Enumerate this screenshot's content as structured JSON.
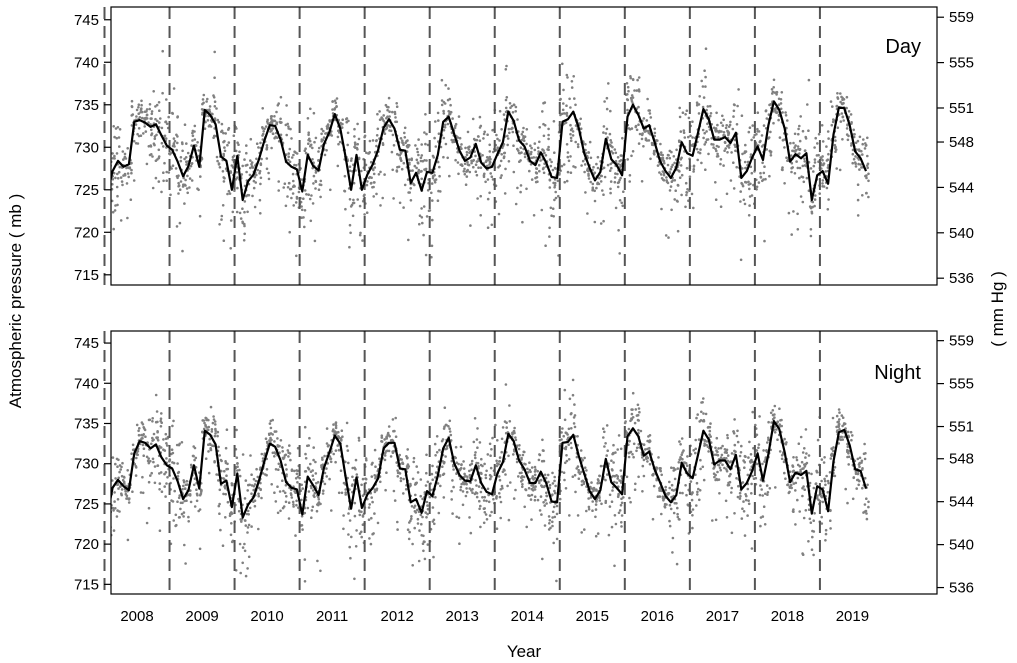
{
  "chart_data": {
    "type": "scatter",
    "xlabel": "Year",
    "ylabel_left": "Atmospheric pressure ( mb )",
    "ylabel_right": "( mm Hg )",
    "year_labels": [
      "2008",
      "2009",
      "2010",
      "2011",
      "2012",
      "2013",
      "2014",
      "2015",
      "2016",
      "2017",
      "2018",
      "2019"
    ],
    "year_boundaries": [
      2008,
      2009,
      2010,
      2011,
      2012,
      2013,
      2014,
      2015,
      2016,
      2017,
      2018,
      2019
    ],
    "xlim": [
      2007.6,
      2020.3
    ],
    "ylim_mb": [
      713.8,
      746.5
    ],
    "ylim_mmhg": [
      535.4,
      559.9
    ],
    "yticks_mb": [
      715,
      720,
      725,
      730,
      735,
      740,
      745
    ],
    "yticks_mmhg": [
      536,
      540,
      544,
      548,
      551,
      555,
      559
    ],
    "colors": {
      "points": "#808080",
      "monthly_mean": "#000000",
      "year_divider": "#555555"
    },
    "panels": [
      {
        "name": "Day",
        "monthly_mean": [
          724.6,
          727.2,
          728.4,
          727.7,
          728.0,
          733.0,
          733.2,
          732.9,
          732.4,
          732.7,
          731.4,
          730.2,
          729.7,
          728.3,
          726.6,
          727.8,
          730.2,
          727.7,
          734.4,
          733.8,
          732.7,
          728.9,
          728.4,
          725.0,
          729.0,
          723.8,
          726.0,
          726.8,
          728.6,
          730.8,
          732.6,
          732.5,
          730.9,
          728.3,
          727.7,
          727.4,
          724.8,
          729.1,
          727.8,
          727.3,
          730.4,
          731.8,
          733.9,
          732.2,
          728.8,
          725.0,
          729.1,
          725.0,
          726.8,
          728.0,
          729.7,
          732.3,
          733.3,
          732.2,
          729.7,
          729.6,
          725.8,
          727.0,
          724.9,
          727.1,
          727.0,
          729.1,
          733.0,
          733.6,
          731.6,
          729.6,
          728.4,
          728.8,
          730.4,
          728.2,
          727.5,
          727.7,
          729.2,
          730.6,
          734.2,
          733.1,
          730.8,
          730.1,
          728.4,
          727.9,
          729.4,
          728.2,
          726.5,
          726.4,
          733.0,
          733.3,
          734.2,
          732.3,
          729.3,
          727.6,
          726.1,
          727.1,
          731.0,
          728.6,
          727.9,
          726.7,
          733.6,
          735.0,
          733.8,
          732.2,
          732.6,
          730.6,
          728.4,
          727.2,
          726.4,
          727.6,
          730.6,
          729.3,
          729.0,
          731.7,
          734.5,
          733.3,
          730.9,
          730.9,
          731.2,
          730.5,
          731.7,
          726.4,
          727.2,
          728.8,
          730.1,
          728.5,
          732.6,
          735.4,
          734.4,
          732.2,
          728.3,
          729.2,
          728.7,
          729.3,
          723.8,
          726.7,
          727.2,
          725.7,
          731.5,
          734.7,
          734.6,
          732.6,
          729.5,
          728.7,
          727.2
        ]
      },
      {
        "name": "Night",
        "monthly_mean": [
          723.6,
          727.0,
          728.0,
          727.2,
          726.7,
          731.3,
          732.8,
          732.6,
          731.9,
          732.4,
          730.8,
          729.8,
          729.4,
          727.8,
          725.6,
          726.7,
          729.8,
          726.9,
          734.1,
          733.6,
          732.4,
          727.5,
          727.9,
          724.6,
          728.8,
          723.3,
          724.9,
          725.8,
          727.9,
          730.3,
          732.5,
          732.1,
          730.4,
          727.7,
          727.0,
          726.8,
          723.7,
          728.4,
          727.3,
          726.1,
          729.5,
          731.4,
          733.5,
          732.5,
          728.3,
          724.4,
          728.3,
          724.5,
          726.2,
          727.0,
          728.2,
          731.9,
          732.6,
          732.6,
          729.4,
          729.3,
          725.2,
          725.6,
          723.9,
          726.6,
          726.0,
          728.5,
          731.9,
          733.2,
          730.1,
          728.6,
          727.9,
          727.8,
          729.8,
          727.6,
          726.5,
          726.2,
          728.8,
          730.2,
          733.7,
          732.8,
          730.4,
          729.3,
          727.6,
          727.6,
          729.0,
          727.6,
          725.3,
          725.2,
          732.6,
          732.7,
          733.6,
          731.0,
          728.8,
          726.6,
          725.6,
          726.7,
          730.6,
          727.7,
          727.0,
          726.2,
          733.4,
          734.4,
          733.4,
          731.0,
          731.5,
          729.3,
          727.7,
          726.0,
          725.2,
          726.1,
          730.1,
          728.8,
          728.2,
          731.1,
          734.1,
          733.0,
          729.9,
          730.4,
          730.4,
          729.3,
          731.1,
          726.8,
          727.6,
          729.1,
          731.3,
          727.9,
          731.2,
          735.3,
          734.3,
          731.4,
          727.7,
          728.9,
          728.6,
          729.1,
          723.8,
          727.2,
          726.8,
          724.1,
          730.3,
          733.9,
          734.2,
          732.3,
          729.3,
          729.1,
          726.9
        ]
      }
    ]
  }
}
